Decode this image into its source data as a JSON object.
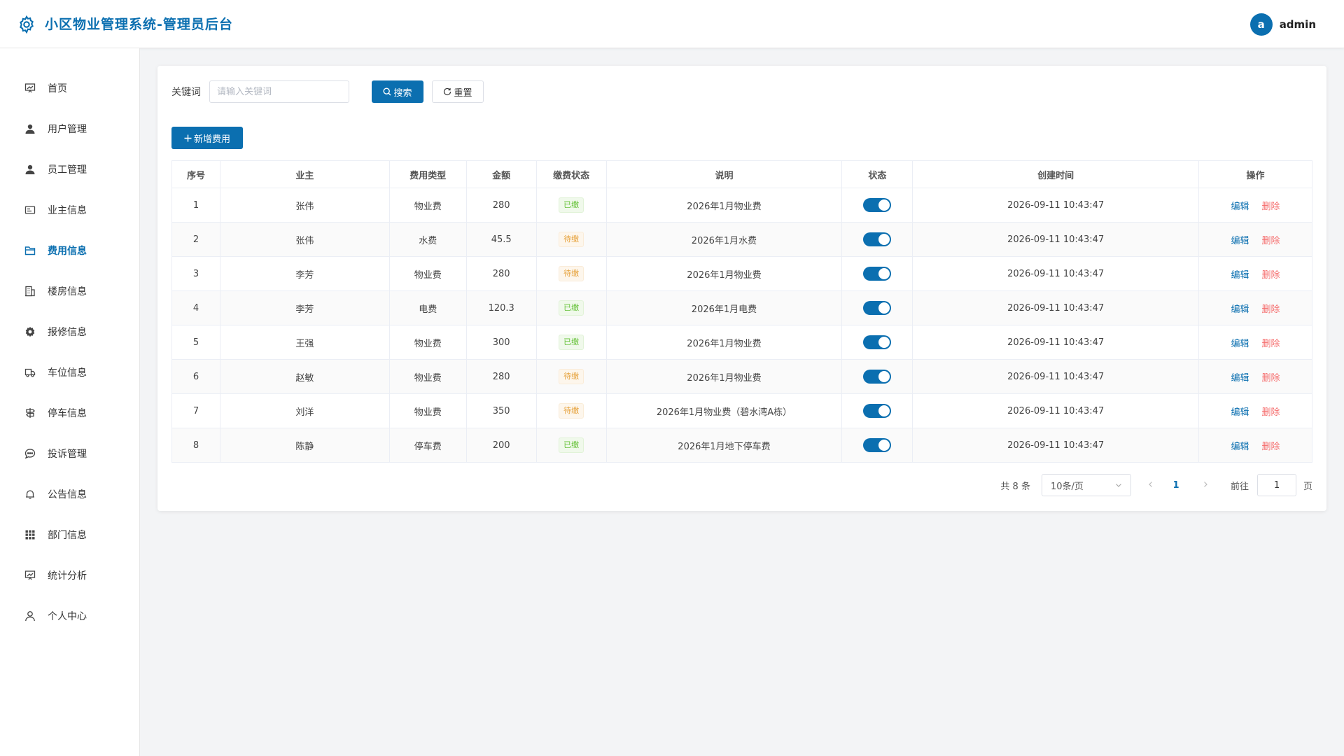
{
  "header": {
    "title": "小区物业管理系统-管理员后台",
    "avatar_letter": "a",
    "user_name": "admin"
  },
  "sidebar": {
    "items": [
      {
        "label": "首页",
        "icon": "dashboard-icon"
      },
      {
        "label": "用户管理",
        "icon": "user-icon"
      },
      {
        "label": "员工管理",
        "icon": "user-icon"
      },
      {
        "label": "业主信息",
        "icon": "id-card-icon"
      },
      {
        "label": "费用信息",
        "icon": "folder-icon",
        "active": true
      },
      {
        "label": "楼房信息",
        "icon": "building-icon"
      },
      {
        "label": "报修信息",
        "icon": "gear-icon"
      },
      {
        "label": "车位信息",
        "icon": "truck-icon"
      },
      {
        "label": "停车信息",
        "icon": "signpost-icon"
      },
      {
        "label": "投诉管理",
        "icon": "chat-icon"
      },
      {
        "label": "公告信息",
        "icon": "bell-icon"
      },
      {
        "label": "部门信息",
        "icon": "grid-icon"
      },
      {
        "label": "统计分析",
        "icon": "chart-icon"
      },
      {
        "label": "个人中心",
        "icon": "person-icon"
      }
    ]
  },
  "search": {
    "label": "关键词",
    "placeholder": "请输入关键词",
    "value": "",
    "search_label": "搜索",
    "reset_label": "重置"
  },
  "toolbar": {
    "add_label": "新增费用"
  },
  "table": {
    "columns": [
      "序号",
      "业主",
      "费用类型",
      "金额",
      "缴费状态",
      "说明",
      "状态",
      "创建时间",
      "操作"
    ],
    "rows": [
      {
        "no": "1",
        "owner": "张伟",
        "type": "物业费",
        "amount": "280",
        "pay_status": "已缴",
        "paid": true,
        "desc": "2026年1月物业费",
        "created": "2026-09-11 10:43:47"
      },
      {
        "no": "2",
        "owner": "张伟",
        "type": "水费",
        "amount": "45.5",
        "pay_status": "待缴",
        "paid": false,
        "desc": "2026年1月水费",
        "created": "2026-09-11 10:43:47"
      },
      {
        "no": "3",
        "owner": "李芳",
        "type": "物业费",
        "amount": "280",
        "pay_status": "待缴",
        "paid": false,
        "desc": "2026年1月物业费",
        "created": "2026-09-11 10:43:47"
      },
      {
        "no": "4",
        "owner": "李芳",
        "type": "电费",
        "amount": "120.3",
        "pay_status": "已缴",
        "paid": true,
        "desc": "2026年1月电费",
        "created": "2026-09-11 10:43:47"
      },
      {
        "no": "5",
        "owner": "王强",
        "type": "物业费",
        "amount": "300",
        "pay_status": "已缴",
        "paid": true,
        "desc": "2026年1月物业费",
        "created": "2026-09-11 10:43:47"
      },
      {
        "no": "6",
        "owner": "赵敏",
        "type": "物业费",
        "amount": "280",
        "pay_status": "待缴",
        "paid": false,
        "desc": "2026年1月物业费",
        "created": "2026-09-11 10:43:47"
      },
      {
        "no": "7",
        "owner": "刘洋",
        "type": "物业费",
        "amount": "350",
        "pay_status": "待缴",
        "paid": false,
        "desc": "2026年1月物业费（碧水湾A栋）",
        "created": "2026-09-11 10:43:47"
      },
      {
        "no": "8",
        "owner": "陈静",
        "type": "停车费",
        "amount": "200",
        "pay_status": "已缴",
        "paid": true,
        "desc": "2026年1月地下停车费",
        "created": "2026-09-11 10:43:47"
      }
    ],
    "edit_label": "编辑",
    "delete_label": "删除"
  },
  "pagination": {
    "total_text": "共 8 条",
    "page_size": "10条/页",
    "current_page": "1",
    "goto_label": "前往",
    "goto_value": "1",
    "unit_label": "页"
  },
  "colors": {
    "primary": "#0b6fb0",
    "danger": "#f56c6c",
    "success": "#67c23a",
    "warning": "#e6a23c"
  }
}
